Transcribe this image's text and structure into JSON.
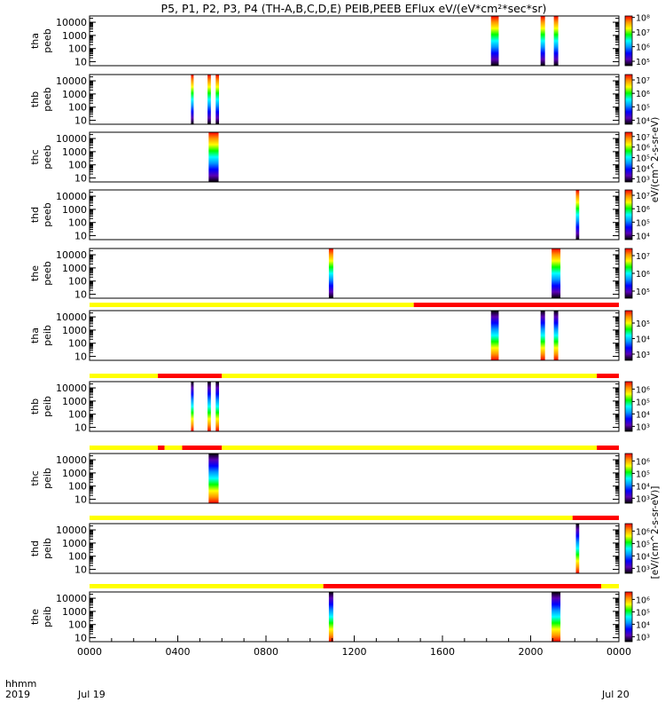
{
  "title": "P5, P1, P2, P3, P4 (TH-A,B,C,D,E) PEIB,PEEB EFlux eV/(eV*cm²*sec*sr)",
  "footer": {
    "time_label": "hhmm",
    "year_label": "2019",
    "date_start": "Jul 19",
    "date_end": "Jul 20"
  },
  "colorbar_units": {
    "peeb": "eV/(cm^2-s-sr-eV)",
    "peib": "[eV/(cm^2-s-sr-eV)]"
  },
  "chart_data": {
    "type": "heatmap",
    "x_unit": "hhmm UT",
    "xlim": [
      0,
      24
    ],
    "xticks": [
      "0000",
      "0400",
      "0800",
      "1200",
      "1600",
      "2000",
      "0000"
    ],
    "ylim_eV": [
      5,
      30000
    ],
    "y_scale": "log",
    "yticks": [
      "10",
      "100",
      "1000",
      "10000"
    ],
    "colors": {
      "flag_good": "#ffff00",
      "flag_bad": "#ff0000",
      "colormap": [
        "#000000",
        "#5a00b4",
        "#0000ff",
        "#0096ff",
        "#00ffff",
        "#00ff00",
        "#ffff00",
        "#ff9600",
        "#ff0000"
      ]
    },
    "panels": [
      {
        "probe": "tha",
        "instrument": "peeb",
        "colorbar_ticks": [
          "10⁵",
          "10⁶",
          "10⁷",
          "10⁸"
        ],
        "colorbar_range_exp": [
          4.7,
          8.1
        ],
        "flag_bar": [],
        "intervals": [
          [
            18.2,
            18.55
          ],
          [
            20.45,
            20.65
          ],
          [
            21.05,
            21.25
          ]
        ]
      },
      {
        "probe": "thb",
        "instrument": "peeb",
        "colorbar_ticks": [
          "10⁴",
          "10⁵",
          "10⁶",
          "10⁷"
        ],
        "colorbar_range_exp": [
          3.7,
          7.4
        ],
        "flag_bar": [],
        "intervals": [
          [
            4.6,
            4.72
          ],
          [
            5.35,
            5.5
          ],
          [
            5.72,
            5.87
          ]
        ]
      },
      {
        "probe": "thc",
        "instrument": "peeb",
        "colorbar_ticks": [
          "10³",
          "10⁴",
          "10⁵",
          "10⁶",
          "10⁷"
        ],
        "colorbar_range_exp": [
          2.7,
          7.4
        ],
        "flag_bar": [],
        "intervals": [
          [
            5.4,
            5.85
          ]
        ]
      },
      {
        "probe": "thd",
        "instrument": "peeb",
        "colorbar_ticks": [
          "10⁴",
          "10⁵",
          "10⁶",
          "10⁷"
        ],
        "colorbar_range_exp": [
          3.7,
          7.4
        ],
        "flag_bar": [],
        "intervals": [
          [
            22.05,
            22.2
          ]
        ]
      },
      {
        "probe": "the",
        "instrument": "peeb",
        "colorbar_ticks": [
          "10⁵",
          "10⁶",
          "10⁷"
        ],
        "colorbar_range_exp": [
          4.6,
          7.4
        ],
        "flag_bar": [],
        "intervals": [
          [
            10.85,
            11.05
          ],
          [
            20.95,
            21.35
          ]
        ]
      },
      {
        "probe": "tha",
        "instrument": "peib",
        "colorbar_ticks": [
          "10³",
          "10⁴",
          "10⁵"
        ],
        "colorbar_range_exp": [
          2.6,
          5.8
        ],
        "flag_bar": [
          [
            0,
            14.7,
            "good"
          ],
          [
            14.7,
            24,
            "bad"
          ]
        ],
        "intervals": [
          [
            18.2,
            18.55
          ],
          [
            20.45,
            20.65
          ],
          [
            21.05,
            21.25
          ]
        ]
      },
      {
        "probe": "thb",
        "instrument": "peib",
        "colorbar_ticks": [
          "10³",
          "10⁴",
          "10⁵",
          "10⁶"
        ],
        "colorbar_range_exp": [
          2.6,
          6.6
        ],
        "flag_bar": [
          [
            0,
            3.1,
            "good"
          ],
          [
            3.1,
            6.0,
            "bad"
          ],
          [
            6.0,
            23.0,
            "good"
          ],
          [
            23.0,
            24,
            "bad"
          ]
        ],
        "intervals": [
          [
            4.6,
            4.72
          ],
          [
            5.35,
            5.5
          ],
          [
            5.72,
            5.87
          ]
        ]
      },
      {
        "probe": "thc",
        "instrument": "peib",
        "colorbar_ticks": [
          "10³",
          "10⁴",
          "10⁵",
          "10⁶"
        ],
        "colorbar_range_exp": [
          2.6,
          6.6
        ],
        "flag_bar": [
          [
            0,
            3.1,
            "good"
          ],
          [
            3.1,
            3.4,
            "bad"
          ],
          [
            3.4,
            4.2,
            "good"
          ],
          [
            4.2,
            6.0,
            "bad"
          ],
          [
            6.0,
            23.0,
            "good"
          ],
          [
            23.0,
            24,
            "bad"
          ]
        ],
        "intervals": [
          [
            5.4,
            5.85
          ]
        ]
      },
      {
        "probe": "thd",
        "instrument": "peib",
        "colorbar_ticks": [
          "10³",
          "10⁴",
          "10⁵",
          "10⁶"
        ],
        "colorbar_range_exp": [
          2.6,
          6.6
        ],
        "flag_bar": [
          [
            0,
            21.9,
            "good"
          ],
          [
            21.9,
            24,
            "bad"
          ]
        ],
        "intervals": [
          [
            22.05,
            22.2
          ]
        ]
      },
      {
        "probe": "the",
        "instrument": "peib",
        "colorbar_ticks": [
          "10³",
          "10⁴",
          "10⁵",
          "10⁶"
        ],
        "colorbar_range_exp": [
          2.6,
          6.6
        ],
        "flag_bar": [
          [
            0,
            10.6,
            "good"
          ],
          [
            10.6,
            23.2,
            "bad"
          ],
          [
            23.2,
            24,
            "good"
          ]
        ],
        "intervals": [
          [
            10.85,
            11.05
          ],
          [
            20.95,
            21.35
          ]
        ]
      }
    ]
  }
}
